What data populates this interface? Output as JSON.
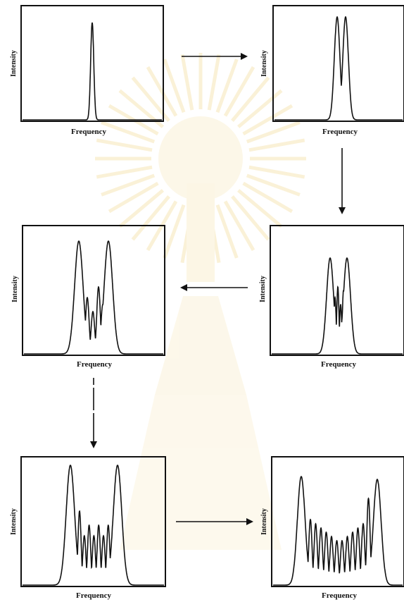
{
  "axis_labels": {
    "x": "Frequency",
    "y": "Intensity"
  },
  "colors": {
    "line": "#111111",
    "background": "#ffffff",
    "watermark": "#f7e9c2"
  },
  "panels": [
    {
      "id": "panel-1",
      "peaks": 1,
      "description_shape": "single narrow peak"
    },
    {
      "id": "panel-2",
      "peaks": 2
    },
    {
      "id": "panel-3",
      "peaks": 2,
      "inner_peaks": 3
    },
    {
      "id": "panel-4",
      "peaks": 2,
      "inner_peaks": 4
    },
    {
      "id": "panel-5",
      "peaks": 2,
      "inner_peaks": 7
    },
    {
      "id": "panel-6",
      "peaks": 2,
      "inner_peaks": 11
    }
  ],
  "arrows": [
    {
      "from": "panel-1",
      "to": "panel-2",
      "direction": "right"
    },
    {
      "from": "panel-2",
      "to": "panel-4",
      "direction": "down"
    },
    {
      "from": "panel-4",
      "to": "panel-3",
      "direction": "left"
    },
    {
      "from": "panel-3",
      "to": "panel-5",
      "direction": "down"
    },
    {
      "from": "panel-5",
      "to": "panel-6",
      "direction": "right"
    }
  ]
}
